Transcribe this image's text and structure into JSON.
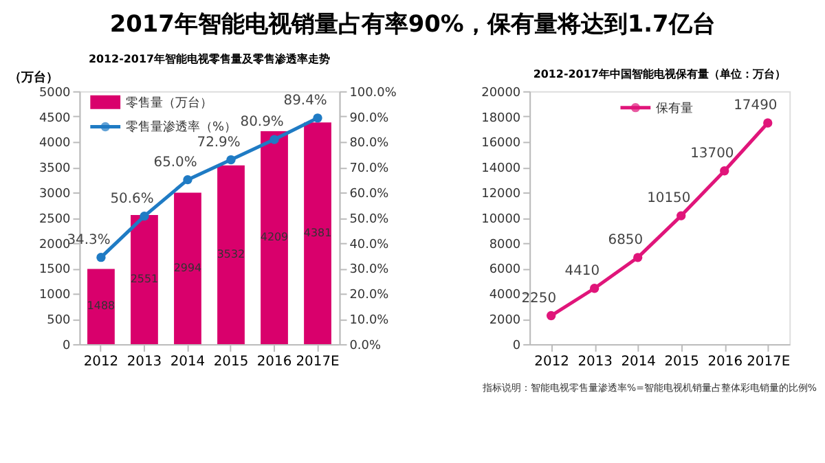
{
  "chart_data": [
    {
      "type": "bar",
      "title": "2017年智能电视销量占有率90%，保有量将达到1.7亿台",
      "subtitle": "2012-2017年智能电视零售量及零售渗透率走势",
      "ylabel": "（万台）",
      "categories": [
        "2012",
        "2013",
        "2014",
        "2015",
        "2016",
        "2017E"
      ],
      "series": [
        {
          "name": "零售量（万台）",
          "type": "bar",
          "color": "#d9006c",
          "values": [
            1488,
            2551,
            2994,
            3532,
            4209,
            4381
          ],
          "data_labels": true
        },
        {
          "name": "零售量渗透率（%）",
          "type": "line",
          "axis": "y2",
          "color": "#1f7bc4",
          "values": [
            34.3,
            50.6,
            65.0,
            72.9,
            80.9,
            89.4
          ],
          "value_labels": [
            "34.3%",
            "50.6%",
            "65.0%",
            "72.9%",
            "80.9%",
            "89.4%"
          ]
        }
      ],
      "ylim": [
        0,
        5000
      ],
      "yticks": [
        0,
        500,
        1000,
        1500,
        2000,
        2500,
        3000,
        3500,
        4000,
        4500,
        5000
      ],
      "y2lim": [
        0,
        100
      ],
      "y2ticks": [
        {
          "value": 0,
          "label": "0.0%"
        },
        {
          "value": 10,
          "label": "10.0%"
        },
        {
          "value": 20,
          "label": "20.0%"
        },
        {
          "value": 30,
          "label": "30.0%"
        },
        {
          "value": 40,
          "label": "40.0%"
        },
        {
          "value": 50,
          "label": "50.0%"
        },
        {
          "value": 60,
          "label": "60.0%"
        },
        {
          "value": 70,
          "label": "70.0%"
        },
        {
          "value": 80,
          "label": "80.0%"
        },
        {
          "value": 90,
          "label": "90.0%"
        },
        {
          "value": 100,
          "label": "100.0%"
        }
      ],
      "legend": "top left",
      "marker": "circle",
      "grid": false
    },
    {
      "type": "line",
      "title": "2012-2017年中国智能电视保有量（单位：万台）",
      "categories": [
        "2012",
        "2013",
        "2014",
        "2015",
        "2016",
        "2017E"
      ],
      "series": [
        {
          "name": "保有量",
          "color": "#e0157a",
          "values": [
            2250,
            4410,
            6850,
            10150,
            13700,
            17490
          ]
        }
      ],
      "ylim": [
        0,
        20000
      ],
      "yticks": [
        0,
        2000,
        4000,
        6000,
        8000,
        10000,
        12000,
        14000,
        16000,
        18000,
        20000
      ],
      "data_labels": true,
      "legend": "top",
      "marker": "circle",
      "grid": false,
      "annotations": [
        "指标说明：智能电视零售量渗透率%=智能电视机销量占整体彩电销量的比例%"
      ]
    }
  ]
}
